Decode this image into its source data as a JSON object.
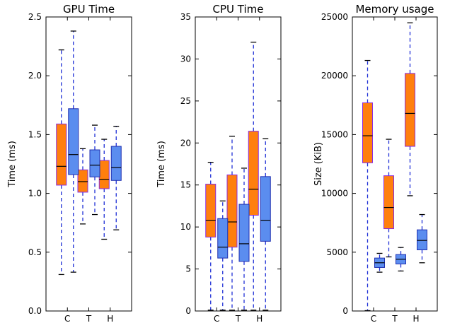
{
  "chart_data": [
    {
      "type": "boxplot",
      "title": "GPU Time",
      "ylabel": "Time (ms)",
      "ylim": [
        0,
        2.5
      ],
      "yticks": [
        "0.0",
        "0.5",
        "1.0",
        "1.5",
        "2.0",
        "2.5"
      ],
      "categories": [
        "C",
        "T",
        "H"
      ],
      "series": [
        {
          "color": "#ff7f0e",
          "boxes": [
            {
              "min": 0.31,
              "q1": 1.07,
              "median": 1.23,
              "q3": 1.59,
              "max": 2.22
            },
            {
              "min": 0.74,
              "q1": 1.01,
              "median": 1.1,
              "q3": 1.2,
              "max": 1.38
            },
            {
              "min": 0.61,
              "q1": 1.04,
              "median": 1.12,
              "q3": 1.28,
              "max": 1.46
            }
          ]
        },
        {
          "color": "#5b8def",
          "boxes": [
            {
              "min": 0.33,
              "q1": 1.16,
              "median": 1.33,
              "q3": 1.72,
              "max": 2.38
            },
            {
              "min": 0.82,
              "q1": 1.14,
              "median": 1.24,
              "q3": 1.37,
              "max": 1.58
            },
            {
              "min": 0.69,
              "q1": 1.11,
              "median": 1.22,
              "q3": 1.4,
              "max": 1.57
            }
          ]
        }
      ]
    },
    {
      "type": "boxplot",
      "title": "CPU Time",
      "ylabel": "Time (ms)",
      "ylim": [
        0,
        35
      ],
      "yticks": [
        "0",
        "5",
        "10",
        "15",
        "20",
        "25",
        "30",
        "35"
      ],
      "categories": [
        "C",
        "T",
        "H"
      ],
      "series": [
        {
          "color": "#ff7f0e",
          "boxes": [
            {
              "min": 0.1,
              "q1": 8.8,
              "median": 10.8,
              "q3": 15.1,
              "max": 17.7
            },
            {
              "min": 0.1,
              "q1": 7.6,
              "median": 10.6,
              "q3": 16.2,
              "max": 20.8
            },
            {
              "min": 0.1,
              "q1": 11.4,
              "median": 14.5,
              "q3": 21.4,
              "max": 32.0
            }
          ]
        },
        {
          "color": "#5b8def",
          "boxes": [
            {
              "min": 0.1,
              "q1": 6.3,
              "median": 7.6,
              "q3": 11.0,
              "max": 13.1
            },
            {
              "min": 0.1,
              "q1": 5.9,
              "median": 8.0,
              "q3": 12.7,
              "max": 17.0
            },
            {
              "min": 0.1,
              "q1": 8.3,
              "median": 10.8,
              "q3": 16.0,
              "max": 20.5
            }
          ]
        }
      ]
    },
    {
      "type": "boxplot",
      "title": "Memory usage",
      "ylabel": "Size (KiB)",
      "ylim": [
        0,
        25000
      ],
      "yticks": [
        "0",
        "5000",
        "10000",
        "15000",
        "20000",
        "25000"
      ],
      "categories": [
        "C",
        "T",
        "H"
      ],
      "series": [
        {
          "color": "#ff7f0e",
          "boxes": [
            {
              "min": 30,
              "q1": 12600,
              "median": 14900,
              "q3": 17700,
              "max": 21300
            },
            {
              "min": 4600,
              "q1": 7000,
              "median": 8800,
              "q3": 11500,
              "max": 14600
            },
            {
              "min": 9800,
              "q1": 14000,
              "median": 16800,
              "q3": 20200,
              "max": 24500
            }
          ]
        },
        {
          "color": "#5b8def",
          "boxes": [
            {
              "min": 3300,
              "q1": 3700,
              "median": 4100,
              "q3": 4500,
              "max": 4900
            },
            {
              "min": 3400,
              "q1": 4000,
              "median": 4400,
              "q3": 4800,
              "max": 5400
            },
            {
              "min": 4100,
              "q1": 5200,
              "median": 6000,
              "q3": 6900,
              "max": 8200
            }
          ]
        }
      ]
    }
  ]
}
